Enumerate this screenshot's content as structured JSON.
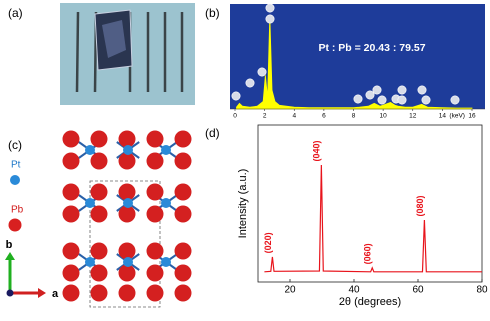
{
  "panels": {
    "a": {
      "label": "(a)"
    },
    "b": {
      "label": "(b)"
    },
    "c": {
      "label": "(c)",
      "legend": [
        "Pt",
        "Pb"
      ],
      "axes": [
        "b",
        "a"
      ]
    },
    "d": {
      "label": "(d)"
    }
  },
  "chart_data": [
    {
      "type": "area",
      "annotation": "Pt : Pb = 20.43 : 79.57",
      "xlabel": "(keV)",
      "color": "#ffff00",
      "background": "#1e3c9a",
      "x": [
        0.1,
        0.3,
        0.5,
        1.0,
        1.5,
        1.9,
        2.05,
        2.2,
        2.35,
        2.5,
        2.7,
        3.0,
        4.0,
        5.0,
        6.0,
        7.0,
        8.0,
        8.4,
        9.0,
        9.4,
        9.8,
        10.5,
        10.8,
        11.0,
        11.5,
        12.0,
        12.6,
        13.0,
        14.0,
        15.0,
        16.0
      ],
      "values": [
        2,
        6,
        3,
        2,
        3,
        8,
        36,
        12,
        100,
        20,
        8,
        4,
        2,
        1.5,
        1.5,
        1.5,
        1.5,
        2,
        3,
        6,
        3,
        7,
        4,
        3,
        2,
        2,
        5,
        2,
        1.5,
        1,
        1
      ],
      "xlim": [
        0,
        16
      ],
      "ylim": [
        0,
        112
      ],
      "xticks": [
        0,
        2,
        4,
        6,
        8,
        10,
        12,
        14,
        16
      ]
    },
    {
      "type": "line",
      "xlabel": "2θ (degrees)",
      "ylabel": "Intensity (a.u.)",
      "color": "#e8141c",
      "x": [
        12,
        14.0,
        14.5,
        15.0,
        29.2,
        29.8,
        30.4,
        45.2,
        45.7,
        46.2,
        61.4,
        62.0,
        62.6,
        80
      ],
      "values": [
        6.5,
        6.8,
        16,
        6.8,
        7,
        74.5,
        7,
        6.5,
        9,
        6.5,
        6.5,
        39.5,
        6.5,
        6.5
      ],
      "annotations": [
        {
          "text": "(020)",
          "x": 14.5
        },
        {
          "text": "(040)",
          "x": 29.8
        },
        {
          "text": "(060)",
          "x": 45.7
        },
        {
          "text": "(080)",
          "x": 62.0
        }
      ],
      "xlim": [
        10,
        80
      ],
      "ylim": [
        0,
        100
      ],
      "xticks": [
        20,
        40,
        60,
        80
      ]
    }
  ]
}
